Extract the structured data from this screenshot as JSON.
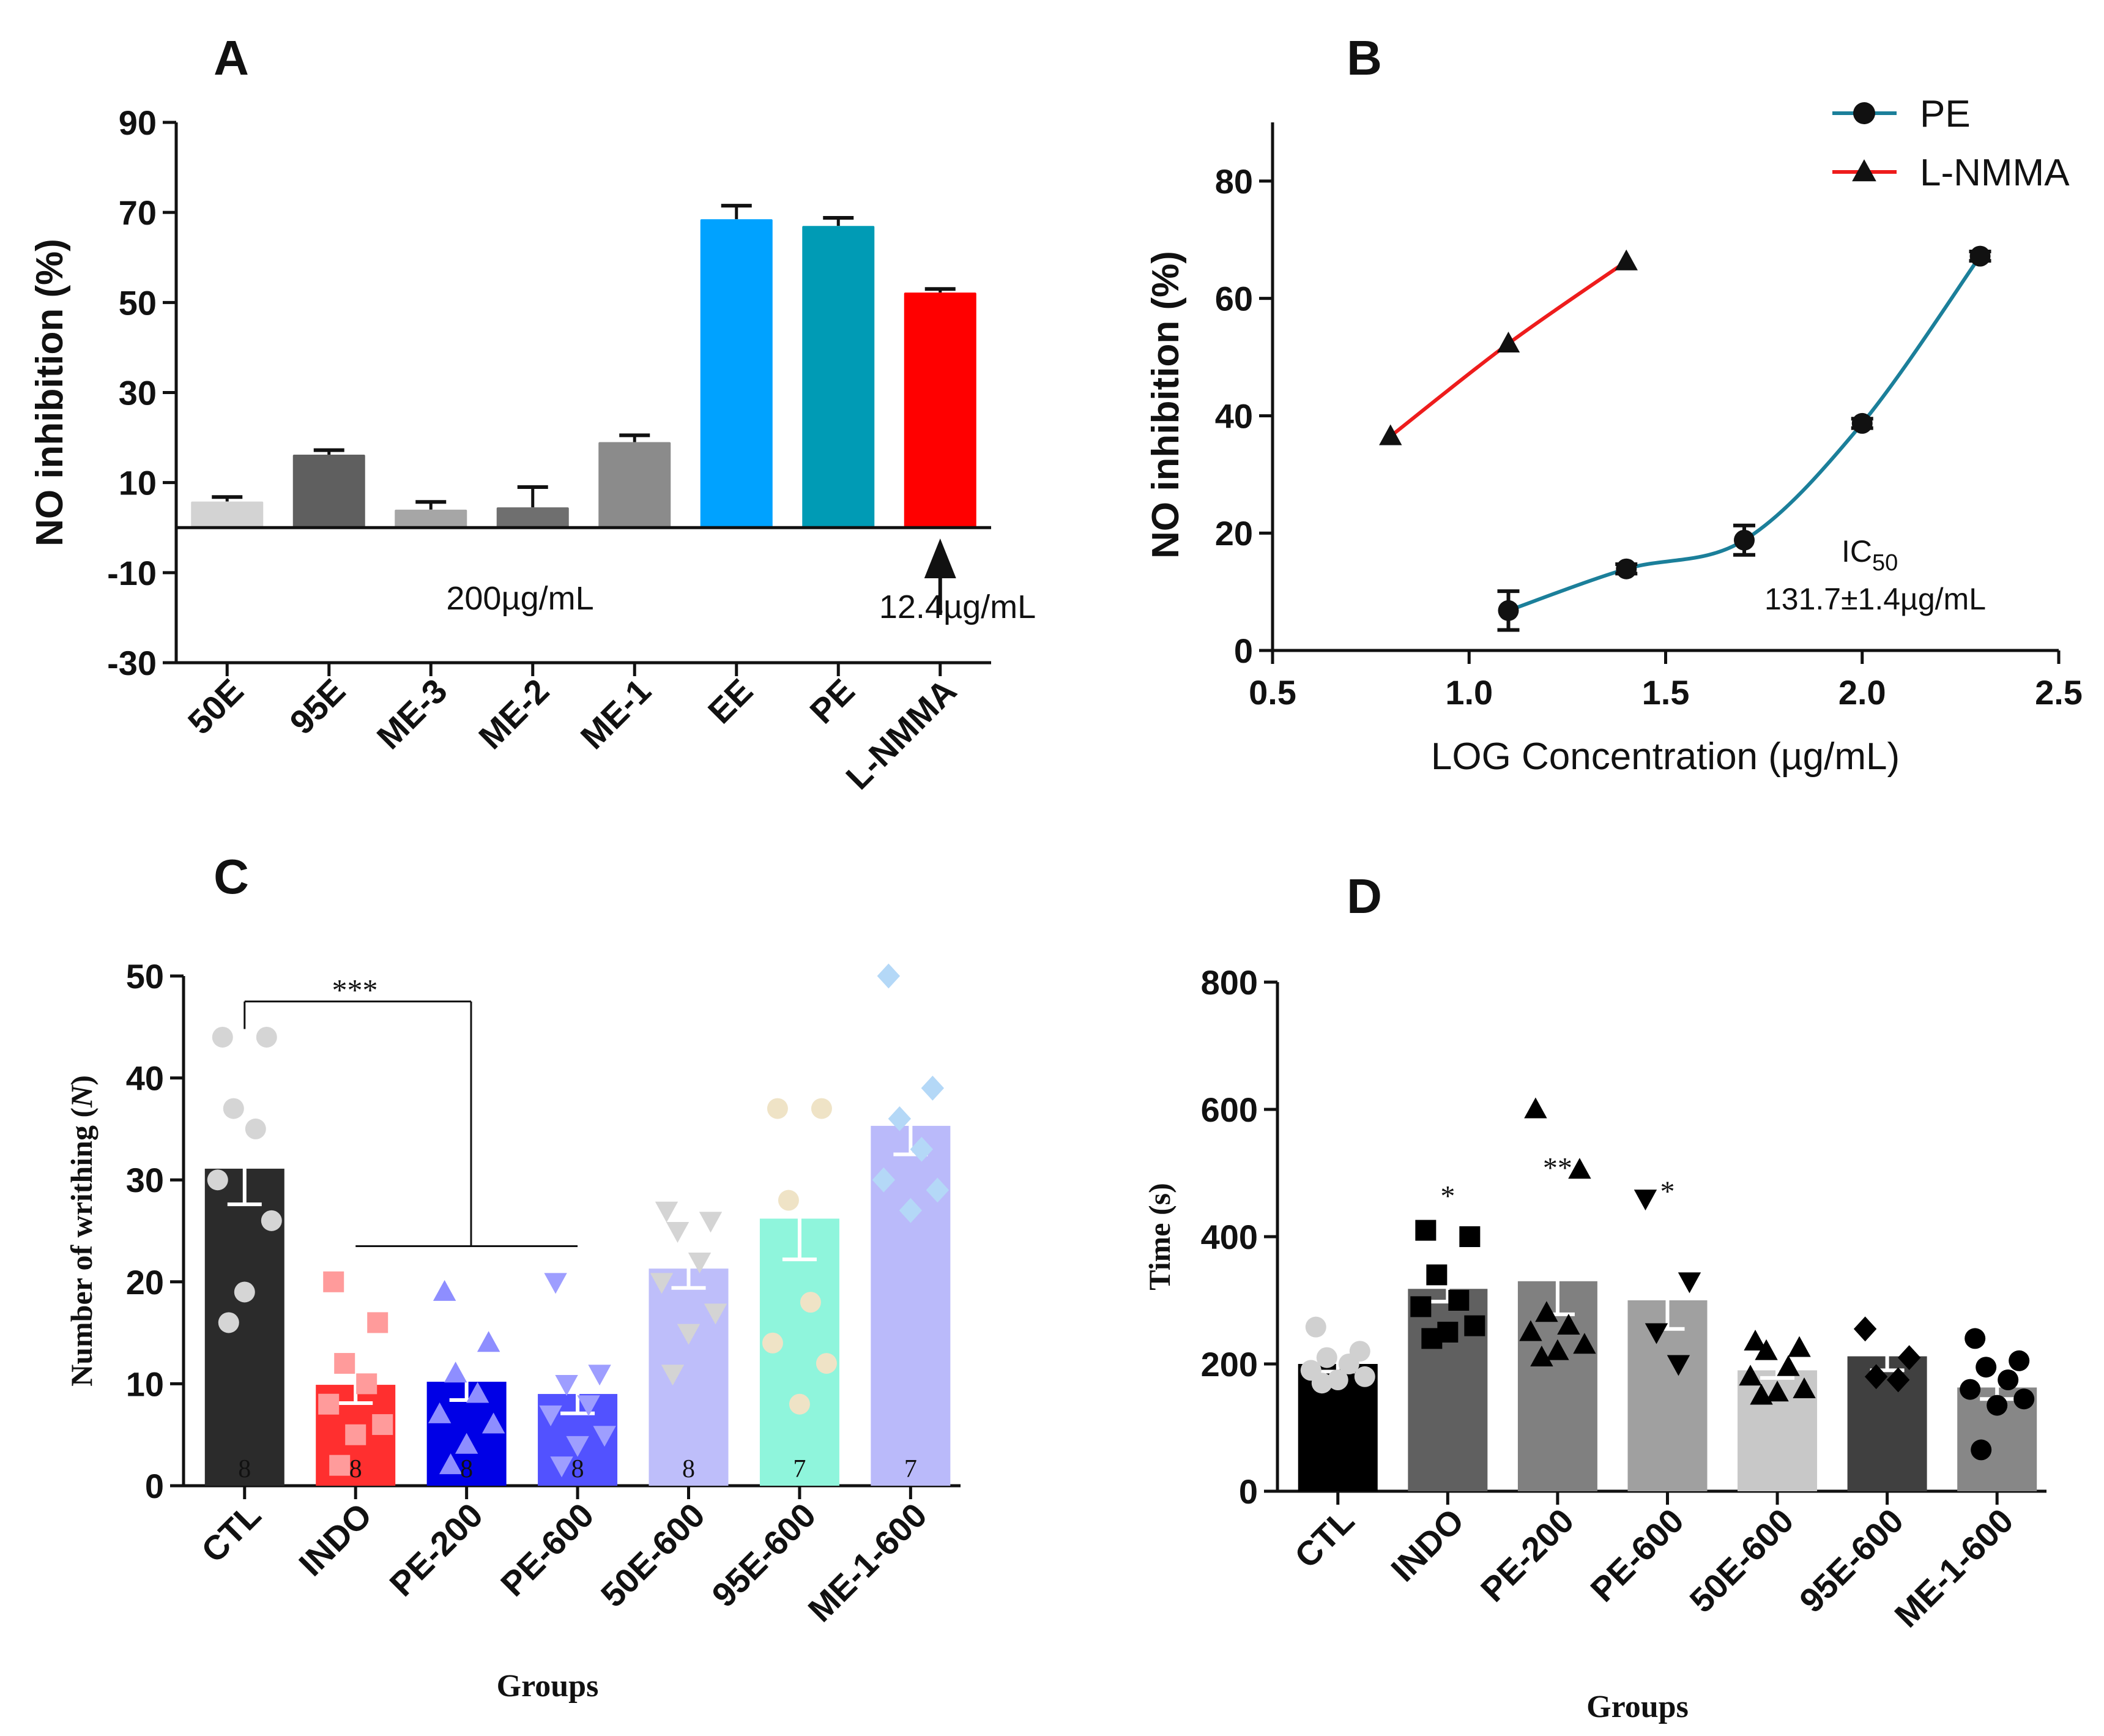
{
  "chart_data": [
    {
      "panel": "A",
      "type": "bar",
      "ylabel": "NO inhibition (%)",
      "ylim": [
        -30,
        90
      ],
      "yticks": [
        -30,
        -10,
        10,
        30,
        50,
        70,
        90
      ],
      "categories": [
        "50E",
        "95E",
        "ME-3",
        "ME-2",
        "ME-1",
        "EE",
        "PE",
        "L-NMMA"
      ],
      "values": [
        5.8,
        16.2,
        4.0,
        4.5,
        19.0,
        68.5,
        67.0,
        52.2
      ],
      "errors": [
        1.0,
        1.0,
        1.7,
        4.5,
        1.5,
        3.0,
        1.8,
        0.8
      ],
      "colors": [
        "#d3d3d3",
        "#5f5f5f",
        "#a6a6a6",
        "#6f6f6f",
        "#8b8b8b",
        "#00a2ff",
        "#009bb5",
        "#ff0000"
      ],
      "annotations": [
        "200µg/mL",
        "12.4µg/mL"
      ]
    },
    {
      "panel": "B",
      "type": "line",
      "xlabel": "LOG Concentration (µg/mL)",
      "ylabel": "NO inhibition (%)",
      "xlim": [
        0.5,
        2.5
      ],
      "ylim": [
        0,
        90
      ],
      "xticks": [
        "0.5",
        "1.0",
        "1.5",
        "2.0",
        "2.5"
      ],
      "yticks": [
        0,
        20,
        40,
        60,
        80
      ],
      "series": [
        {
          "name": "PE",
          "color": "#1b7f9a",
          "marker": "circle",
          "x": [
            1.1,
            1.4,
            1.7,
            2.0,
            2.3
          ],
          "y": [
            6.8,
            13.9,
            18.8,
            38.7,
            67.2
          ],
          "err": [
            3.3,
            0.8,
            2.5,
            0.8,
            0.8
          ]
        },
        {
          "name": "L-NMMA",
          "color": "#ee1c1c",
          "marker": "triangle",
          "x": [
            0.8,
            1.1,
            1.4
          ],
          "y": [
            36.5,
            52.3,
            66.3
          ],
          "err": [
            0,
            0,
            0
          ]
        }
      ],
      "ic50_label": "IC",
      "ic50_sub": "50",
      "ic50_value": "131.7±1.4µg/mL"
    },
    {
      "panel": "C",
      "type": "bar",
      "xlabel": "Groups",
      "ylabel": "Number of writhing (",
      "ylabel_italic": "N",
      "ylabel_end": ")",
      "ylim": [
        0,
        50
      ],
      "yticks": [
        0,
        10,
        20,
        30,
        40,
        50
      ],
      "categories": [
        "CTL",
        "INDO",
        "PE-200",
        "PE-600",
        "50E-600",
        "95E-600",
        "ME-1-600"
      ],
      "values": [
        31.1,
        9.9,
        10.2,
        9.0,
        21.3,
        26.2,
        35.3
      ],
      "errors": [
        3.5,
        1.8,
        1.8,
        1.9,
        1.9,
        4.0,
        2.8
      ],
      "n": [
        "8",
        "8",
        "8",
        "8",
        "8",
        "7",
        "7"
      ],
      "colors": [
        "#2b2b2b",
        "#ff2f2f",
        "#0000e6",
        "#5252ff",
        "#bebefa",
        "#8ff5dc",
        "#babafa"
      ],
      "point_colors": [
        "#d5d5d5",
        "#ff9b9b",
        "#8e8eff",
        "#9e9eff",
        "#d4d4d4",
        "#efe3c6",
        "#b4d8f7"
      ],
      "point_shapes": [
        "circle",
        "square",
        "triangle",
        "tri-down",
        "tri-down",
        "circle",
        "diamond"
      ],
      "points": [
        [
          44,
          44,
          37,
          35,
          30,
          26,
          19,
          16
        ],
        [
          20,
          16,
          12,
          10,
          8,
          6,
          5,
          2
        ],
        [
          19,
          14,
          11,
          9,
          7,
          6,
          4,
          2
        ],
        [
          20,
          11,
          10,
          8,
          7,
          5,
          4,
          2
        ],
        [
          27,
          26,
          25,
          22,
          20,
          17,
          15,
          11
        ],
        [
          37,
          37,
          28,
          18,
          14,
          12,
          8
        ],
        [
          50,
          39,
          36,
          33,
          30,
          29,
          27
        ]
      ],
      "significance": "***"
    },
    {
      "panel": "D",
      "type": "bar",
      "xlabel": "Groups",
      "ylabel": "Time (s)",
      "ylim": [
        0,
        800
      ],
      "yticks": [
        0,
        200,
        400,
        600,
        800
      ],
      "categories": [
        "CTL",
        "INDO",
        "PE-200",
        "PE-600",
        "50E-600",
        "95E-600",
        "ME-1-600"
      ],
      "values": [
        200,
        318,
        330,
        300,
        190,
        212,
        163
      ],
      "errors": [
        12,
        20,
        52,
        45,
        12,
        22,
        18
      ],
      "stars": [
        "",
        "*",
        "**",
        "*",
        "",
        "",
        ""
      ],
      "colors": [
        "#000000",
        "#606060",
        "#808080",
        "#a0a0a0",
        "#c8c8c8",
        "#404040",
        "#878787"
      ],
      "point_colors": [
        "#d0d0d0",
        "#000000",
        "#000000",
        "#000000",
        "#000000",
        "#000000",
        "#000000"
      ],
      "point_shapes": [
        "circle",
        "square",
        "triangle",
        "tri-down",
        "triangle",
        "diamond",
        "circle"
      ],
      "points": [
        [
          258,
          220,
          210,
          200,
          190,
          180,
          175,
          170
        ],
        [
          410,
          400,
          340,
          300,
          290,
          260,
          250,
          240
        ],
        [
          600,
          505,
          280,
          260,
          250,
          230,
          220,
          210
        ],
        [
          460,
          330,
          250,
          200
        ],
        [
          235,
          225,
          220,
          195,
          180,
          160,
          155,
          150
        ],
        [
          255,
          210,
          180,
          175
        ],
        [
          240,
          205,
          195,
          175,
          160,
          145,
          135,
          65
        ]
      ]
    }
  ],
  "panel_labels": [
    "A",
    "B",
    "C",
    "D"
  ]
}
